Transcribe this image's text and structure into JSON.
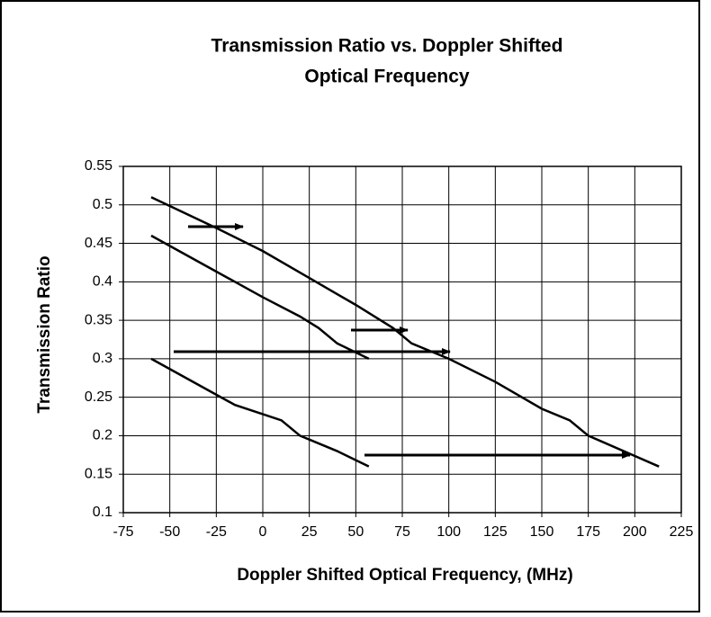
{
  "chart_data": {
    "type": "line",
    "title": [
      "Transmission Ratio vs. Doppler Shifted",
      "Optical Frequency"
    ],
    "x_label": "Doppler Shifted Optical Frequency, (MHz)",
    "y_label": "Transmission Ratio",
    "xlim": [
      -75,
      225
    ],
    "xticks": [
      -75,
      -50,
      -25,
      0,
      25,
      50,
      75,
      100,
      125,
      150,
      175,
      200,
      225
    ],
    "ylim": [
      0.1,
      0.55
    ],
    "yticks": [
      0.1,
      0.15,
      0.2,
      0.25,
      0.3,
      0.35,
      0.4,
      0.45,
      0.5,
      0.55
    ],
    "grid": true,
    "series": [
      {
        "color": "#000000",
        "x": [
          -60,
          -25,
          0,
          25,
          50,
          70,
          80,
          100,
          125,
          150,
          165,
          175,
          213
        ],
        "values": [
          0.51,
          0.47,
          0.44,
          0.405,
          0.37,
          0.34,
          0.32,
          0.3,
          0.27,
          0.235,
          0.22,
          0.2,
          0.16
        ]
      },
      {
        "color": "#000000",
        "x": [
          -60,
          -45,
          -30,
          -15,
          0,
          20,
          30,
          40,
          57
        ],
        "values": [
          0.46,
          0.44,
          0.42,
          0.4,
          0.38,
          0.355,
          0.34,
          0.32,
          0.3
        ]
      },
      {
        "color": "#000000",
        "x": [
          -60,
          -30,
          -15,
          10,
          20,
          40,
          57
        ],
        "values": [
          0.3,
          0.26,
          0.24,
          0.22,
          0.2,
          0.18,
          0.16
        ]
      }
    ]
  }
}
